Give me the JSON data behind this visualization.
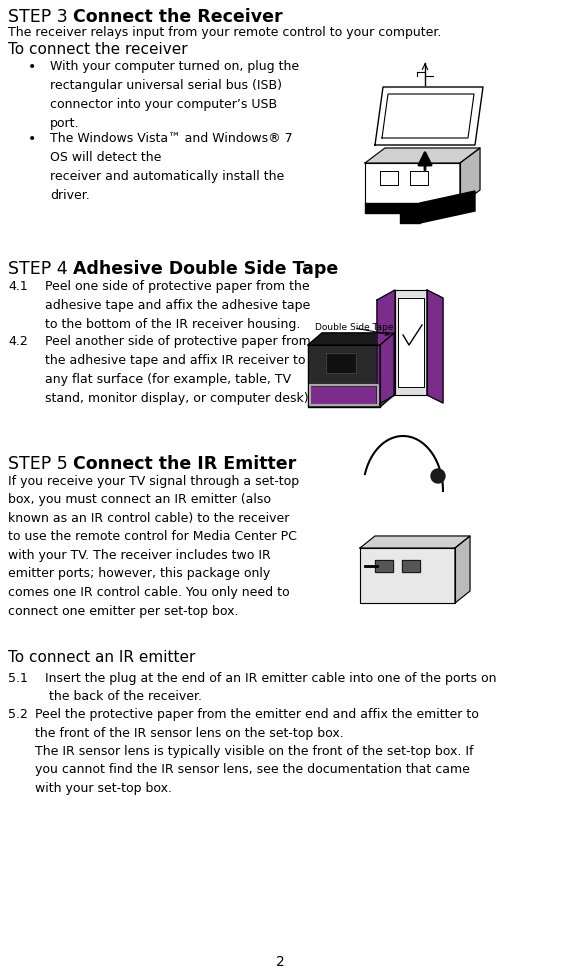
{
  "background_color": "#ffffff",
  "page_number": "2",
  "step3_label": "STEP 3",
  "step3_heading": "Connect the Receiver",
  "step3_intro": "The receiver relays input from your remote control to your computer.",
  "step3_subhead": "To connect the receiver",
  "step3_bullet1": "With your computer turned on, plug the\n        rectangular universal serial bus (ISB)\n        connector into your computer’s USB\n        port.",
  "step3_bullet2": "The Windows Vista™ and Windows® 7\n        OS will detect the\n        receiver and automatically install the\n        driver.",
  "step4_label": "STEP 4",
  "step4_heading": "Adhesive Double Side Tape",
  "step4_41": "4.1",
  "step4_41_text": "Peel one side of protective paper from the\n      adhesive tape and affix the adhesive tape\n      to the bottom of the IR receiver housing.",
  "step4_42": "4.2",
  "step4_42_text": "Peel another side of protective paper from\n      the adhesive tape and affix IR receiver to\n      any flat surface (for example, table, TV\n      stand, monitor display, or computer desk)",
  "step5_label": "STEP 5",
  "step5_heading": "Connect the IR Emitter",
  "step5_intro": "If you receive your TV signal through a set-top\nbox, you must connect an IR emitter (also\nknown as an IR control cable) to the receiver\nto use the remote control for Media Center PC\nwith your TV. The receiver includes two IR\nemitter ports; however, this package only\ncomes one IR control cable. You only need to\nconnect one emitter per set-top box.",
  "step5_subhead": "To connect an IR emitter",
  "step5_51": "5.1",
  "step5_51_text": "Insert the plug at the end of an IR emitter cable into one of the ports on\n       the back of the receiver.",
  "step5_52": "5.2",
  "step5_52_text": "Peel the protective paper from the emitter end and affix the emitter to\nthe front of the IR sensor lens on the set-top box.\nThe IR sensor lens is typically visible on the front of the set-top box. If\nyou cannot find the IR sensor lens, see the documentation that came\nwith your set-top box.",
  "purple": "#7B2D8B",
  "dark_purple": "#4a1a5c",
  "silver": "#c8c8c8",
  "dark": "#1a1a1a"
}
